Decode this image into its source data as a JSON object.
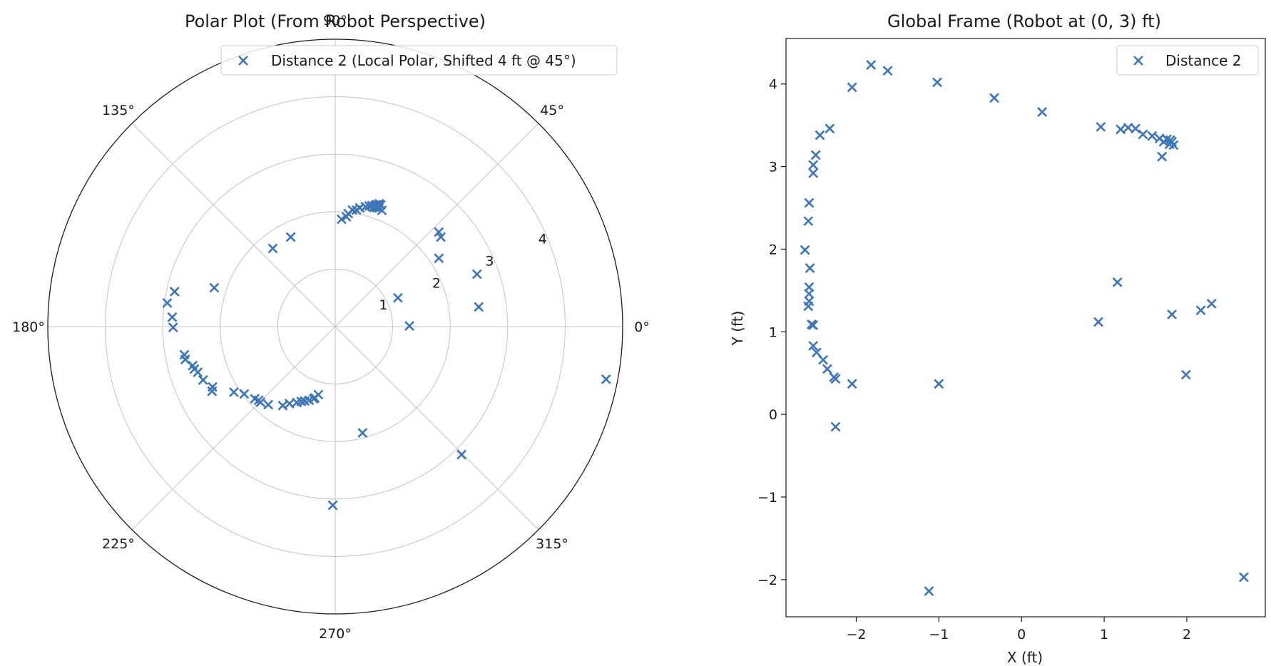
{
  "chart_data": [
    {
      "type": "scatter",
      "projection": "polar",
      "title": "Polar Plot (From Robot Perspective)",
      "theta_ticks": [
        "0°",
        "45°",
        "90°",
        "135°",
        "180°",
        "225°",
        "270°",
        "315°"
      ],
      "r_ticks": [
        "1",
        "2",
        "3",
        "4"
      ],
      "rlim": [
        0,
        5
      ],
      "grid": true,
      "legend_position": "top-right",
      "marker_color": "#3d76b8",
      "series": [
        {
          "name": "Distance 2 (Local Polar, Shifted 4 ft @ 45°)",
          "marker": "x",
          "points": [
            {
              "theta": 72.1,
              "r": 2.18
            },
            {
              "theta": 71.8,
              "r": 2.22
            },
            {
              "theta": 71.3,
              "r": 2.24
            },
            {
              "theta": 70.9,
              "r": 2.24
            },
            {
              "theta": 70.5,
              "r": 2.22
            },
            {
              "theta": 70.8,
              "r": 2.19
            },
            {
              "theta": 71.6,
              "r": 2.2
            },
            {
              "theta": 73.1,
              "r": 2.2
            },
            {
              "theta": 74.3,
              "r": 2.18
            },
            {
              "theta": 75.9,
              "r": 2.15
            },
            {
              "theta": 68.1,
              "r": 2.18
            },
            {
              "theta": 78.3,
              "r": 2.11
            },
            {
              "theta": 79.7,
              "r": 2.06
            },
            {
              "theta": 81.6,
              "r": 2.05
            },
            {
              "theta": 83.4,
              "r": 1.98
            },
            {
              "theta": 84.2,
              "r": 1.92
            },
            {
              "theta": 86.6,
              "r": 1.87
            },
            {
              "theta": 69.5,
              "r": 2.26
            },
            {
              "theta": 69.7,
              "r": 2.2
            },
            {
              "theta": 70.3,
              "r": 2.27
            },
            {
              "theta": 116.4,
              "r": 1.74
            },
            {
              "theta": 128.6,
              "r": 1.74
            },
            {
              "theta": 162.2,
              "r": 2.21
            },
            {
              "theta": 167.7,
              "r": 2.86
            },
            {
              "theta": 172.0,
              "r": 2.95
            },
            {
              "theta": 176.7,
              "r": 2.84
            },
            {
              "theta": 180.3,
              "r": 2.82
            },
            {
              "theta": 190.6,
              "r": 2.67
            },
            {
              "theta": 192.4,
              "r": 2.67
            },
            {
              "theta": 195.3,
              "r": 2.57
            },
            {
              "theta": 196.8,
              "r": 2.56
            },
            {
              "theta": 198.4,
              "r": 2.52
            },
            {
              "theta": 202.0,
              "r": 2.48
            },
            {
              "theta": 206.2,
              "r": 2.38
            },
            {
              "theta": 207.7,
              "r": 2.42
            },
            {
              "theta": 212.9,
              "r": 2.1
            },
            {
              "theta": 216.5,
              "r": 1.97
            },
            {
              "theta": 221.9,
              "r": 1.88
            },
            {
              "theta": 223.9,
              "r": 1.85
            },
            {
              "theta": 225.4,
              "r": 1.85
            },
            {
              "theta": 229.4,
              "r": 1.79
            },
            {
              "theta": 236.4,
              "r": 1.65
            },
            {
              "theta": 239.3,
              "r": 1.56
            },
            {
              "theta": 243.1,
              "r": 1.48
            },
            {
              "theta": 247.7,
              "r": 1.4
            },
            {
              "theta": 250.5,
              "r": 1.36
            },
            {
              "theta": 253.4,
              "r": 1.31
            },
            {
              "theta": 256.1,
              "r": 1.22
            },
            {
              "theta": 254.1,
              "r": 1.29
            },
            {
              "theta": 245.5,
              "r": 1.43
            },
            {
              "theta": 269.2,
              "r": 3.11
            },
            {
              "theta": 284.4,
              "r": 1.91
            },
            {
              "theta": 314.6,
              "r": 3.13
            },
            {
              "theta": 349.0,
              "r": 4.8
            },
            {
              "theta": 0.5,
              "r": 1.29
            },
            {
              "theta": 24.6,
              "r": 1.2
            },
            {
              "theta": 20.3,
              "r": 2.63
            },
            {
              "theta": 33.4,
              "r": 2.16
            },
            {
              "theta": 40.3,
              "r": 2.41
            },
            {
              "theta": 42.4,
              "r": 2.44
            },
            {
              "theta": 7.8,
              "r": 2.52
            }
          ]
        }
      ]
    },
    {
      "type": "scatter",
      "title": "Global Frame (Robot at (0, 3) ft)",
      "xlabel": "X (ft)",
      "ylabel": "Y (ft)",
      "xlim": [
        -2.85,
        2.95
      ],
      "ylim": [
        -2.45,
        4.55
      ],
      "x_ticks": [
        -2,
        -1,
        0,
        1,
        2
      ],
      "y_ticks": [
        -2,
        -1,
        0,
        1,
        2,
        3,
        4
      ],
      "grid": false,
      "legend_position": "top-right",
      "marker_color": "#3d76b8",
      "series": [
        {
          "name": "Distance 2",
          "marker": "x",
          "points": [
            {
              "x": -1.82,
              "y": 4.23
            },
            {
              "x": -1.62,
              "y": 4.16
            },
            {
              "x": -1.02,
              "y": 4.02
            },
            {
              "x": -2.05,
              "y": 3.96
            },
            {
              "x": -0.33,
              "y": 3.83
            },
            {
              "x": 0.25,
              "y": 3.66
            },
            {
              "x": 0.96,
              "y": 3.48
            },
            {
              "x": 1.2,
              "y": 3.45
            },
            {
              "x": 1.29,
              "y": 3.47
            },
            {
              "x": 1.38,
              "y": 3.46
            },
            {
              "x": 1.47,
              "y": 3.39
            },
            {
              "x": 1.58,
              "y": 3.37
            },
            {
              "x": 1.67,
              "y": 3.34
            },
            {
              "x": 1.72,
              "y": 3.3
            },
            {
              "x": 1.76,
              "y": 3.33
            },
            {
              "x": 1.82,
              "y": 3.3
            },
            {
              "x": 1.84,
              "y": 3.26
            },
            {
              "x": 1.79,
              "y": 3.27
            },
            {
              "x": 1.7,
              "y": 3.12
            },
            {
              "x": 1.8,
              "y": 3.32
            },
            {
              "x": -2.32,
              "y": 3.46
            },
            {
              "x": -2.44,
              "y": 3.38
            },
            {
              "x": -2.49,
              "y": 3.14
            },
            {
              "x": -2.52,
              "y": 3.02
            },
            {
              "x": -2.52,
              "y": 2.92
            },
            {
              "x": -2.57,
              "y": 2.56
            },
            {
              "x": -2.58,
              "y": 2.34
            },
            {
              "x": -2.62,
              "y": 1.99
            },
            {
              "x": -2.56,
              "y": 1.77
            },
            {
              "x": -2.57,
              "y": 1.54
            },
            {
              "x": -2.57,
              "y": 1.46
            },
            {
              "x": -2.57,
              "y": 1.37
            },
            {
              "x": -2.58,
              "y": 1.31
            },
            {
              "x": -2.54,
              "y": 1.09
            },
            {
              "x": -2.52,
              "y": 1.08
            },
            {
              "x": -2.52,
              "y": 0.83
            },
            {
              "x": -2.48,
              "y": 0.75
            },
            {
              "x": -2.4,
              "y": 0.66
            },
            {
              "x": -2.35,
              "y": 0.55
            },
            {
              "x": -2.27,
              "y": 0.45
            },
            {
              "x": -2.25,
              "y": 0.43
            },
            {
              "x": -2.05,
              "y": 0.37
            },
            {
              "x": -2.25,
              "y": -0.15
            },
            {
              "x": -1.0,
              "y": 0.37
            },
            {
              "x": -1.12,
              "y": -2.14
            },
            {
              "x": 1.16,
              "y": 1.6
            },
            {
              "x": 0.93,
              "y": 1.12
            },
            {
              "x": 1.82,
              "y": 1.21
            },
            {
              "x": 2.17,
              "y": 1.26
            },
            {
              "x": 2.3,
              "y": 1.34
            },
            {
              "x": 1.99,
              "y": 0.48
            },
            {
              "x": 2.69,
              "y": -1.97
            }
          ]
        }
      ]
    }
  ]
}
